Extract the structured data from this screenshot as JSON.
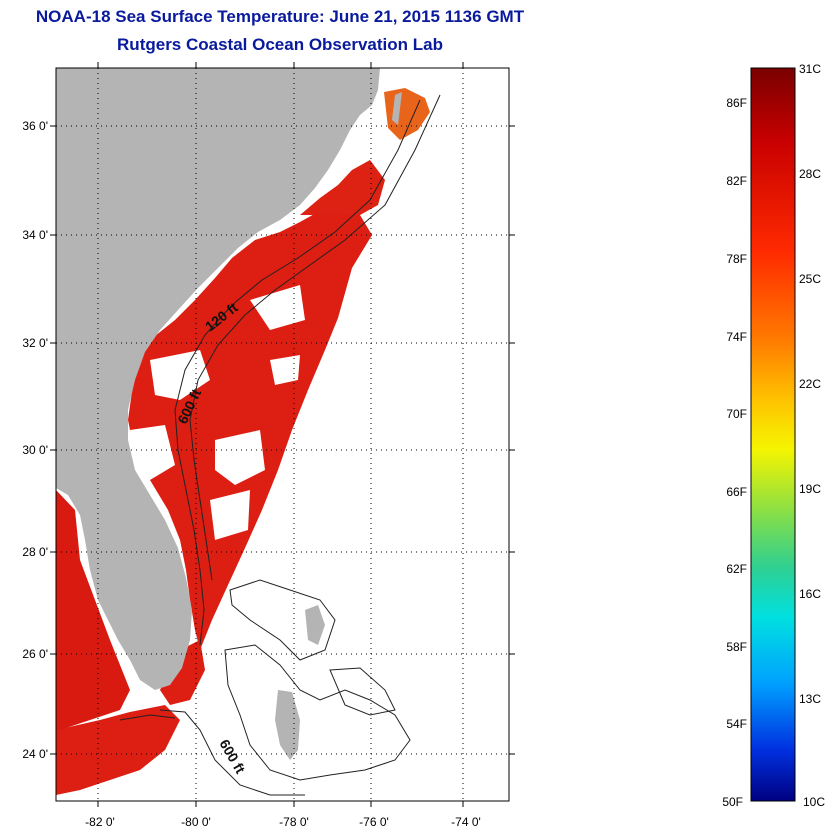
{
  "header": {
    "title": "NOAA-18 Sea Surface Temperature:  June 21, 2015 1136 GMT",
    "subtitle": "Rutgers Coastal Ocean Observation Lab"
  },
  "map": {
    "lat_ticks": [
      "36 0'",
      "34 0'",
      "32 0'",
      "30 0'",
      "28 0'",
      "26 0'",
      "24 0'"
    ],
    "lon_ticks": [
      "-82 0'",
      "-80 0'",
      "-78 0'",
      "-76 0'",
      "-74 0'"
    ],
    "contour_labels": [
      "120 ft",
      "600 ft",
      "600 ft"
    ],
    "colors": {
      "land": "#b4b4b4",
      "sst_warm": "#e01e10",
      "sst_hot": "#c8140c",
      "no_data": "#ffffff"
    }
  },
  "colorbar": {
    "fahrenheit_labels": [
      "86F",
      "82F",
      "78F",
      "74F",
      "70F",
      "66F",
      "62F",
      "58F",
      "54F",
      "50F"
    ],
    "celsius_labels": [
      "31C",
      "28C",
      "25C",
      "22C",
      "19C",
      "16C",
      "13C",
      "10C"
    ]
  }
}
